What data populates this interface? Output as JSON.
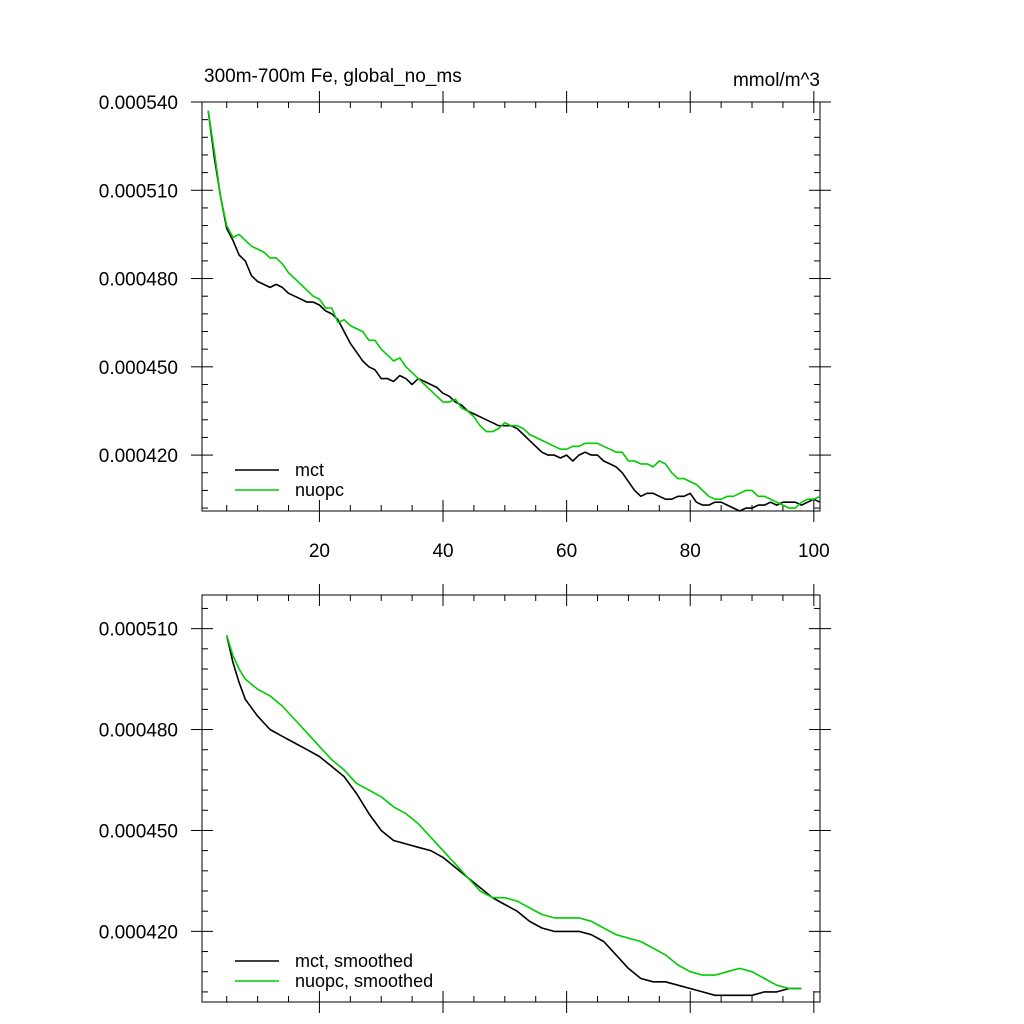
{
  "chart_data": [
    {
      "type": "line",
      "title": "300m-700m Fe, global_no_ms",
      "units": "mmol/m^3",
      "xlim": [
        1,
        101
      ],
      "ylim": [
        0.000401,
        0.00054
      ],
      "xticks": [
        20,
        40,
        60,
        80,
        100
      ],
      "xtick_labels": [
        "20",
        "40",
        "60",
        "80",
        "100"
      ],
      "yticks": [
        0.00054,
        0.00051,
        0.00048,
        0.00045,
        0.00042
      ],
      "ytick_labels": [
        "0.000540",
        "0.000510",
        "0.000480",
        "0.000450",
        "0.000420"
      ],
      "legend_position": "bottom-left",
      "series": [
        {
          "name": "mct",
          "color": "#000000",
          "x": [
            2,
            3,
            4,
            5,
            6,
            7,
            8,
            9,
            10,
            11,
            12,
            13,
            14,
            15,
            16,
            17,
            18,
            19,
            20,
            21,
            22,
            23,
            24,
            25,
            26,
            27,
            28,
            29,
            30,
            31,
            32,
            33,
            34,
            35,
            36,
            37,
            38,
            39,
            40,
            41,
            42,
            43,
            44,
            45,
            46,
            47,
            48,
            49,
            50,
            51,
            52,
            53,
            54,
            55,
            56,
            57,
            58,
            59,
            60,
            61,
            62,
            63,
            64,
            65,
            66,
            67,
            68,
            69,
            70,
            71,
            72,
            73,
            74,
            75,
            76,
            77,
            78,
            79,
            80,
            81,
            82,
            83,
            84,
            85,
            86,
            87,
            88,
            89,
            90,
            91,
            92,
            93,
            94,
            95,
            96,
            97,
            98,
            99,
            100,
            101
          ],
          "values": [
            0.000537,
            0.000521,
            0.000508,
            0.000497,
            0.000493,
            0.000488,
            0.000486,
            0.000481,
            0.000479,
            0.000478,
            0.000477,
            0.000478,
            0.000477,
            0.000475,
            0.000474,
            0.000473,
            0.000472,
            0.000472,
            0.000471,
            0.000469,
            0.000468,
            0.000466,
            0.000462,
            0.000458,
            0.000455,
            0.000452,
            0.00045,
            0.000449,
            0.000446,
            0.000446,
            0.000445,
            0.000447,
            0.000446,
            0.000444,
            0.000446,
            0.000445,
            0.000444,
            0.000443,
            0.000441,
            0.00044,
            0.000438,
            0.000437,
            0.000435,
            0.000434,
            0.000433,
            0.000432,
            0.000431,
            0.00043,
            0.00043,
            0.00043,
            0.000429,
            0.000427,
            0.000425,
            0.000423,
            0.000421,
            0.00042,
            0.00042,
            0.000419,
            0.00042,
            0.000418,
            0.00042,
            0.000421,
            0.00042,
            0.00042,
            0.000418,
            0.000417,
            0.000416,
            0.000414,
            0.000411,
            0.000408,
            0.000406,
            0.000407,
            0.000407,
            0.000406,
            0.000405,
            0.000405,
            0.000406,
            0.000406,
            0.000407,
            0.000404,
            0.000403,
            0.000403,
            0.000404,
            0.000404,
            0.000403,
            0.000402,
            0.000401,
            0.000402,
            0.000402,
            0.000403,
            0.000403,
            0.000404,
            0.000403,
            0.000404,
            0.000404,
            0.000404,
            0.000403,
            0.000404,
            0.000405,
            0.000404
          ]
        },
        {
          "name": "nuopc",
          "color": "#00cc00",
          "x": [
            2,
            3,
            4,
            5,
            6,
            7,
            8,
            9,
            10,
            11,
            12,
            13,
            14,
            15,
            16,
            17,
            18,
            19,
            20,
            21,
            22,
            23,
            24,
            25,
            26,
            27,
            28,
            29,
            30,
            31,
            32,
            33,
            34,
            35,
            36,
            37,
            38,
            39,
            40,
            41,
            42,
            43,
            44,
            45,
            46,
            47,
            48,
            49,
            50,
            51,
            52,
            53,
            54,
            55,
            56,
            57,
            58,
            59,
            60,
            61,
            62,
            63,
            64,
            65,
            66,
            67,
            68,
            69,
            70,
            71,
            72,
            73,
            74,
            75,
            76,
            77,
            78,
            79,
            80,
            81,
            82,
            83,
            84,
            85,
            86,
            87,
            88,
            89,
            90,
            91,
            92,
            93,
            94,
            95,
            96,
            97,
            98,
            99,
            100,
            101
          ],
          "values": [
            0.000537,
            0.000523,
            0.000508,
            0.000498,
            0.000494,
            0.000495,
            0.000493,
            0.000491,
            0.00049,
            0.000489,
            0.000487,
            0.000487,
            0.000485,
            0.000482,
            0.00048,
            0.000478,
            0.000476,
            0.000474,
            0.000473,
            0.00047,
            0.00047,
            0.000465,
            0.000466,
            0.000464,
            0.000463,
            0.000462,
            0.000459,
            0.000459,
            0.000456,
            0.000454,
            0.000452,
            0.000453,
            0.00045,
            0.000448,
            0.000446,
            0.000444,
            0.000442,
            0.00044,
            0.000438,
            0.000438,
            0.000439,
            0.000436,
            0.000435,
            0.000433,
            0.00043,
            0.000428,
            0.000428,
            0.000429,
            0.000431,
            0.00043,
            0.00043,
            0.000429,
            0.000427,
            0.000426,
            0.000425,
            0.000424,
            0.000423,
            0.000422,
            0.000422,
            0.000423,
            0.000423,
            0.000424,
            0.000424,
            0.000424,
            0.000423,
            0.000422,
            0.000421,
            0.000421,
            0.000418,
            0.000418,
            0.000417,
            0.000417,
            0.000416,
            0.000418,
            0.000417,
            0.000414,
            0.000412,
            0.000412,
            0.000411,
            0.00041,
            0.000408,
            0.000406,
            0.000405,
            0.000405,
            0.000406,
            0.000406,
            0.000407,
            0.000408,
            0.000408,
            0.000406,
            0.000406,
            0.000405,
            0.000404,
            0.000403,
            0.000402,
            0.000402,
            0.000404,
            0.000405,
            0.000405,
            0.000406
          ]
        }
      ]
    },
    {
      "type": "line",
      "title": "",
      "xlim": [
        1,
        101
      ],
      "ylim": [
        0.000399,
        0.00052
      ],
      "xticks": [
        20,
        40,
        60,
        80,
        100
      ],
      "xtick_labels": [],
      "yticks": [
        0.00051,
        0.00048,
        0.00045,
        0.00042
      ],
      "ytick_labels": [
        "0.000510",
        "0.000480",
        "0.000450",
        "0.000420"
      ],
      "legend_position": "bottom-left",
      "series": [
        {
          "name": "mct, smoothed",
          "color": "#000000",
          "x": [
            5,
            6,
            7,
            8,
            10,
            12,
            14,
            16,
            18,
            20,
            22,
            24,
            26,
            28,
            30,
            32,
            34,
            36,
            38,
            40,
            42,
            44,
            46,
            48,
            50,
            52,
            54,
            56,
            58,
            60,
            62,
            64,
            66,
            68,
            70,
            72,
            74,
            76,
            78,
            80,
            82,
            84,
            86,
            88,
            90,
            92,
            94,
            96,
            98
          ],
          "values": [
            0.000508,
            0.0005,
            0.000494,
            0.000489,
            0.000484,
            0.00048,
            0.000478,
            0.000476,
            0.000474,
            0.000472,
            0.000469,
            0.000466,
            0.000461,
            0.000455,
            0.00045,
            0.000447,
            0.000446,
            0.000445,
            0.000444,
            0.000442,
            0.000439,
            0.000436,
            0.000433,
            0.00043,
            0.000428,
            0.000426,
            0.000423,
            0.000421,
            0.00042,
            0.00042,
            0.00042,
            0.000419,
            0.000417,
            0.000413,
            0.000409,
            0.000406,
            0.000405,
            0.000405,
            0.000404,
            0.000403,
            0.000402,
            0.000401,
            0.000401,
            0.000401,
            0.000401,
            0.000402,
            0.000402,
            0.000403,
            0.000403
          ]
        },
        {
          "name": "nuopc, smoothed",
          "color": "#00cc00",
          "x": [
            5,
            6,
            7,
            8,
            10,
            12,
            14,
            16,
            18,
            20,
            22,
            24,
            26,
            28,
            30,
            32,
            34,
            36,
            38,
            40,
            42,
            44,
            46,
            48,
            50,
            52,
            54,
            56,
            58,
            60,
            62,
            64,
            66,
            68,
            70,
            72,
            74,
            76,
            78,
            80,
            82,
            84,
            86,
            88,
            90,
            92,
            94,
            96,
            98
          ],
          "values": [
            0.000508,
            0.000502,
            0.000498,
            0.000495,
            0.000492,
            0.00049,
            0.000487,
            0.000483,
            0.000479,
            0.000475,
            0.000471,
            0.000468,
            0.000464,
            0.000462,
            0.00046,
            0.000457,
            0.000455,
            0.000452,
            0.000448,
            0.000444,
            0.00044,
            0.000436,
            0.000432,
            0.00043,
            0.00043,
            0.000429,
            0.000427,
            0.000425,
            0.000424,
            0.000424,
            0.000424,
            0.000423,
            0.000421,
            0.000419,
            0.000418,
            0.000417,
            0.000415,
            0.000413,
            0.00041,
            0.000408,
            0.000407,
            0.000407,
            0.000408,
            0.000409,
            0.000408,
            0.000406,
            0.000404,
            0.000403,
            0.000403
          ]
        }
      ]
    }
  ]
}
